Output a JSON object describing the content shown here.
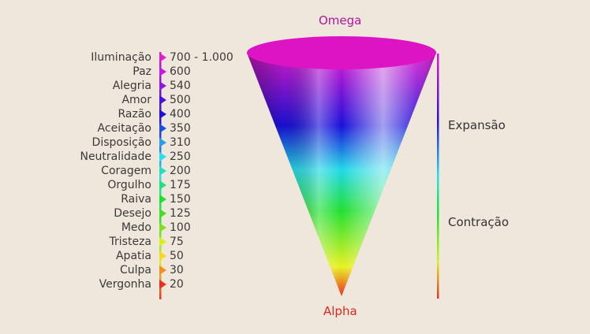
{
  "diagram": {
    "top_label": "Omega",
    "bottom_label": "Alpha",
    "expansion_label": "Expansão",
    "contraction_label": "Contração",
    "colors": {
      "background": "#efe6dc",
      "omega": "#b0169e",
      "alpha": "#e3261a"
    },
    "levels": [
      {
        "name": "Iluminação",
        "value": "700 - 1.000",
        "color": "#e01bd0"
      },
      {
        "name": "Paz",
        "value": "600",
        "color": "#c61be0"
      },
      {
        "name": "Alegria",
        "value": "540",
        "color": "#8a1be0"
      },
      {
        "name": "Amor",
        "value": "500",
        "color": "#4a10e0"
      },
      {
        "name": "Razão",
        "value": "400",
        "color": "#1a10d8"
      },
      {
        "name": "Aceitação",
        "value": "350",
        "color": "#1a50e0"
      },
      {
        "name": "Disposição",
        "value": "310",
        "color": "#25a0e8"
      },
      {
        "name": "Neutralidade",
        "value": "250",
        "color": "#25e0f0"
      },
      {
        "name": "Coragem",
        "value": "200",
        "color": "#20e0c0"
      },
      {
        "name": "Orgulho",
        "value": "175",
        "color": "#20e080"
      },
      {
        "name": "Raiva",
        "value": "150",
        "color": "#20e030"
      },
      {
        "name": "Desejo",
        "value": "125",
        "color": "#40e020"
      },
      {
        "name": "Medo",
        "value": "100",
        "color": "#80e020"
      },
      {
        "name": "Tristeza",
        "value": "75",
        "color": "#d8f020"
      },
      {
        "name": "Apatia",
        "value": "50",
        "color": "#f8d820"
      },
      {
        "name": "Culpa",
        "value": "30",
        "color": "#f09020"
      },
      {
        "name": "Vergonha",
        "value": "20",
        "color": "#e83020"
      }
    ]
  }
}
